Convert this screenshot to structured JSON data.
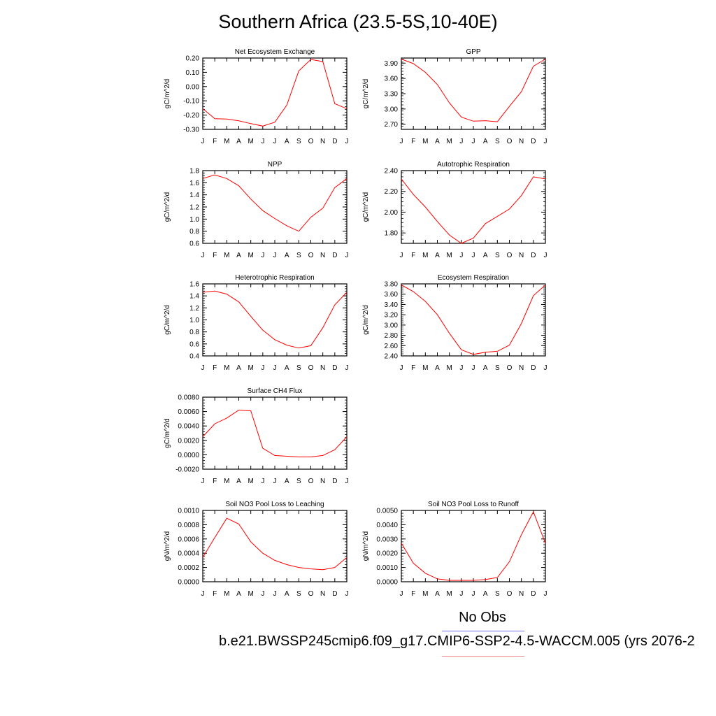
{
  "figure": {
    "title": "Southern Africa (23.5-5S,10-40E)",
    "legend": {
      "obs_label": "No Obs",
      "model_label": "b.e21.BWSSP245cmip6.f09_g17.CMIP6-SSP2-4.5-WACCM.005 (yrs 2076-2",
      "obs_color": "#6f6ff0",
      "model_color": "#f08a8a"
    },
    "line_color": "#ff0000",
    "month_labels": [
      "J",
      "F",
      "M",
      "A",
      "M",
      "J",
      "J",
      "A",
      "S",
      "O",
      "N",
      "D",
      "J"
    ]
  },
  "chart_data": [
    {
      "type": "line",
      "title": "Net Ecosystem Exchange",
      "ylabel": "gC/m^2/d",
      "ylim": [
        -0.3,
        0.2
      ],
      "yticks": [
        "0.20",
        "0.10",
        "0.00",
        "-0.10",
        "-0.20",
        "-0.30"
      ],
      "ytick_values": [
        0.2,
        0.1,
        0.0,
        -0.1,
        -0.2,
        -0.3
      ],
      "x": [
        "J",
        "F",
        "M",
        "A",
        "M",
        "J",
        "J",
        "A",
        "S",
        "O",
        "N",
        "D",
        "J"
      ],
      "values": [
        -0.155,
        -0.225,
        -0.228,
        -0.24,
        -0.26,
        -0.277,
        -0.25,
        -0.13,
        0.11,
        0.19,
        0.175,
        -0.12,
        -0.155
      ]
    },
    {
      "type": "line",
      "title": "GPP",
      "ylabel": "gC/m^2/d",
      "ylim": [
        2.6,
        4.0
      ],
      "yticks": [
        "3.90",
        "3.60",
        "3.30",
        "3.00",
        "2.70"
      ],
      "ytick_values": [
        3.9,
        3.6,
        3.3,
        3.0,
        2.7
      ],
      "x": [
        "J",
        "F",
        "M",
        "A",
        "M",
        "J",
        "J",
        "A",
        "S",
        "O",
        "N",
        "D",
        "J"
      ],
      "values": [
        3.98,
        3.89,
        3.72,
        3.48,
        3.12,
        2.84,
        2.76,
        2.77,
        2.75,
        3.05,
        3.34,
        3.84,
        3.98
      ]
    },
    {
      "type": "line",
      "title": "NPP",
      "ylabel": "gC/m^2/d",
      "ylim": [
        0.6,
        1.8
      ],
      "yticks": [
        "1.8",
        "1.6",
        "1.4",
        "1.2",
        "1.0",
        "0.8",
        "0.6"
      ],
      "ytick_values": [
        1.8,
        1.6,
        1.4,
        1.2,
        1.0,
        0.8,
        0.6
      ],
      "x": [
        "J",
        "F",
        "M",
        "A",
        "M",
        "J",
        "J",
        "A",
        "S",
        "O",
        "N",
        "D",
        "J"
      ],
      "values": [
        1.67,
        1.73,
        1.67,
        1.55,
        1.33,
        1.14,
        1.01,
        0.89,
        0.8,
        1.03,
        1.18,
        1.52,
        1.67
      ]
    },
    {
      "type": "line",
      "title": "Autotrophic Respiration",
      "ylabel": "gC/m^2/d",
      "ylim": [
        1.7,
        2.4
      ],
      "yticks": [
        "2.40",
        "2.20",
        "2.00",
        "1.80"
      ],
      "ytick_values": [
        2.4,
        2.2,
        2.0,
        1.8
      ],
      "x": [
        "J",
        "F",
        "M",
        "A",
        "M",
        "J",
        "J",
        "A",
        "S",
        "O",
        "N",
        "D",
        "J"
      ],
      "values": [
        2.32,
        2.17,
        2.05,
        1.91,
        1.78,
        1.7,
        1.75,
        1.89,
        1.96,
        2.03,
        2.16,
        2.34,
        2.32
      ]
    },
    {
      "type": "line",
      "title": "Heterotrophic Respiration",
      "ylabel": "gC/m^2/d",
      "ylim": [
        0.4,
        1.6
      ],
      "yticks": [
        "1.6",
        "1.4",
        "1.2",
        "1.0",
        "0.8",
        "0.6",
        "0.4"
      ],
      "ytick_values": [
        1.6,
        1.4,
        1.2,
        1.0,
        0.8,
        0.6,
        0.4
      ],
      "x": [
        "J",
        "F",
        "M",
        "A",
        "M",
        "J",
        "J",
        "A",
        "S",
        "O",
        "N",
        "D",
        "J"
      ],
      "values": [
        1.46,
        1.48,
        1.43,
        1.3,
        1.06,
        0.83,
        0.67,
        0.58,
        0.53,
        0.57,
        0.87,
        1.25,
        1.46
      ]
    },
    {
      "type": "line",
      "title": "Ecosystem Respiration",
      "ylabel": "gC/m^2/d",
      "ylim": [
        2.4,
        3.8
      ],
      "yticks": [
        "3.80",
        "3.60",
        "3.40",
        "3.20",
        "3.00",
        "2.80",
        "2.60",
        "2.40"
      ],
      "ytick_values": [
        3.8,
        3.6,
        3.4,
        3.2,
        3.0,
        2.8,
        2.6,
        2.4
      ],
      "x": [
        "J",
        "F",
        "M",
        "A",
        "M",
        "J",
        "J",
        "A",
        "S",
        "O",
        "N",
        "D",
        "J"
      ],
      "values": [
        3.78,
        3.65,
        3.46,
        3.2,
        2.84,
        2.52,
        2.43,
        2.47,
        2.49,
        2.61,
        3.03,
        3.57,
        3.78
      ]
    },
    {
      "type": "line",
      "title": "Surface CH4 Flux",
      "ylabel": "gC/m^2/d",
      "ylim": [
        -0.002,
        0.008
      ],
      "yticks": [
        "0.0080",
        "0.0060",
        "0.0040",
        "0.0020",
        "0.0000",
        "-0.0020"
      ],
      "ytick_values": [
        0.008,
        0.006,
        0.004,
        0.002,
        0.0,
        -0.002
      ],
      "x": [
        "J",
        "F",
        "M",
        "A",
        "M",
        "J",
        "J",
        "A",
        "S",
        "O",
        "N",
        "D",
        "J"
      ],
      "values": [
        0.0025,
        0.0043,
        0.0051,
        0.0062,
        0.0061,
        0.0009,
        -0.0001,
        -0.0002,
        -0.0003,
        -0.0003,
        -0.0001,
        0.0007,
        0.0025
      ]
    },
    {
      "type": "line",
      "title": "Soil NO3 Pool Loss to Leaching",
      "ylabel": "gN/m^2/d",
      "ylim": [
        0.0,
        0.001
      ],
      "yticks": [
        "0.0010",
        "0.0008",
        "0.0006",
        "0.0004",
        "0.0002",
        "0.0000"
      ],
      "ytick_values": [
        0.001,
        0.0008,
        0.0006,
        0.0004,
        0.0002,
        0.0
      ],
      "x": [
        "J",
        "F",
        "M",
        "A",
        "M",
        "J",
        "J",
        "A",
        "S",
        "O",
        "N",
        "D",
        "J"
      ],
      "values": [
        0.00034,
        0.00062,
        0.00089,
        0.00081,
        0.00056,
        0.0004,
        0.0003,
        0.00024,
        0.0002,
        0.00018,
        0.00017,
        0.0002,
        0.00034
      ]
    },
    {
      "type": "line",
      "title": "Soil NO3 Pool Loss to Runoff",
      "ylabel": "gN/m^2/d",
      "ylim": [
        0.0,
        0.005
      ],
      "yticks": [
        "0.0050",
        "0.0040",
        "0.0030",
        "0.0020",
        "0.0010",
        "0.0000"
      ],
      "ytick_values": [
        0.005,
        0.004,
        0.003,
        0.002,
        0.001,
        0.0
      ],
      "x": [
        "J",
        "F",
        "M",
        "A",
        "M",
        "J",
        "J",
        "A",
        "S",
        "O",
        "N",
        "D",
        "J"
      ],
      "values": [
        0.0027,
        0.0013,
        0.0006,
        0.0002,
        0.0001,
        0.0001,
        0.0001,
        0.00015,
        0.0003,
        0.0014,
        0.0033,
        0.0049,
        0.0027
      ]
    }
  ]
}
